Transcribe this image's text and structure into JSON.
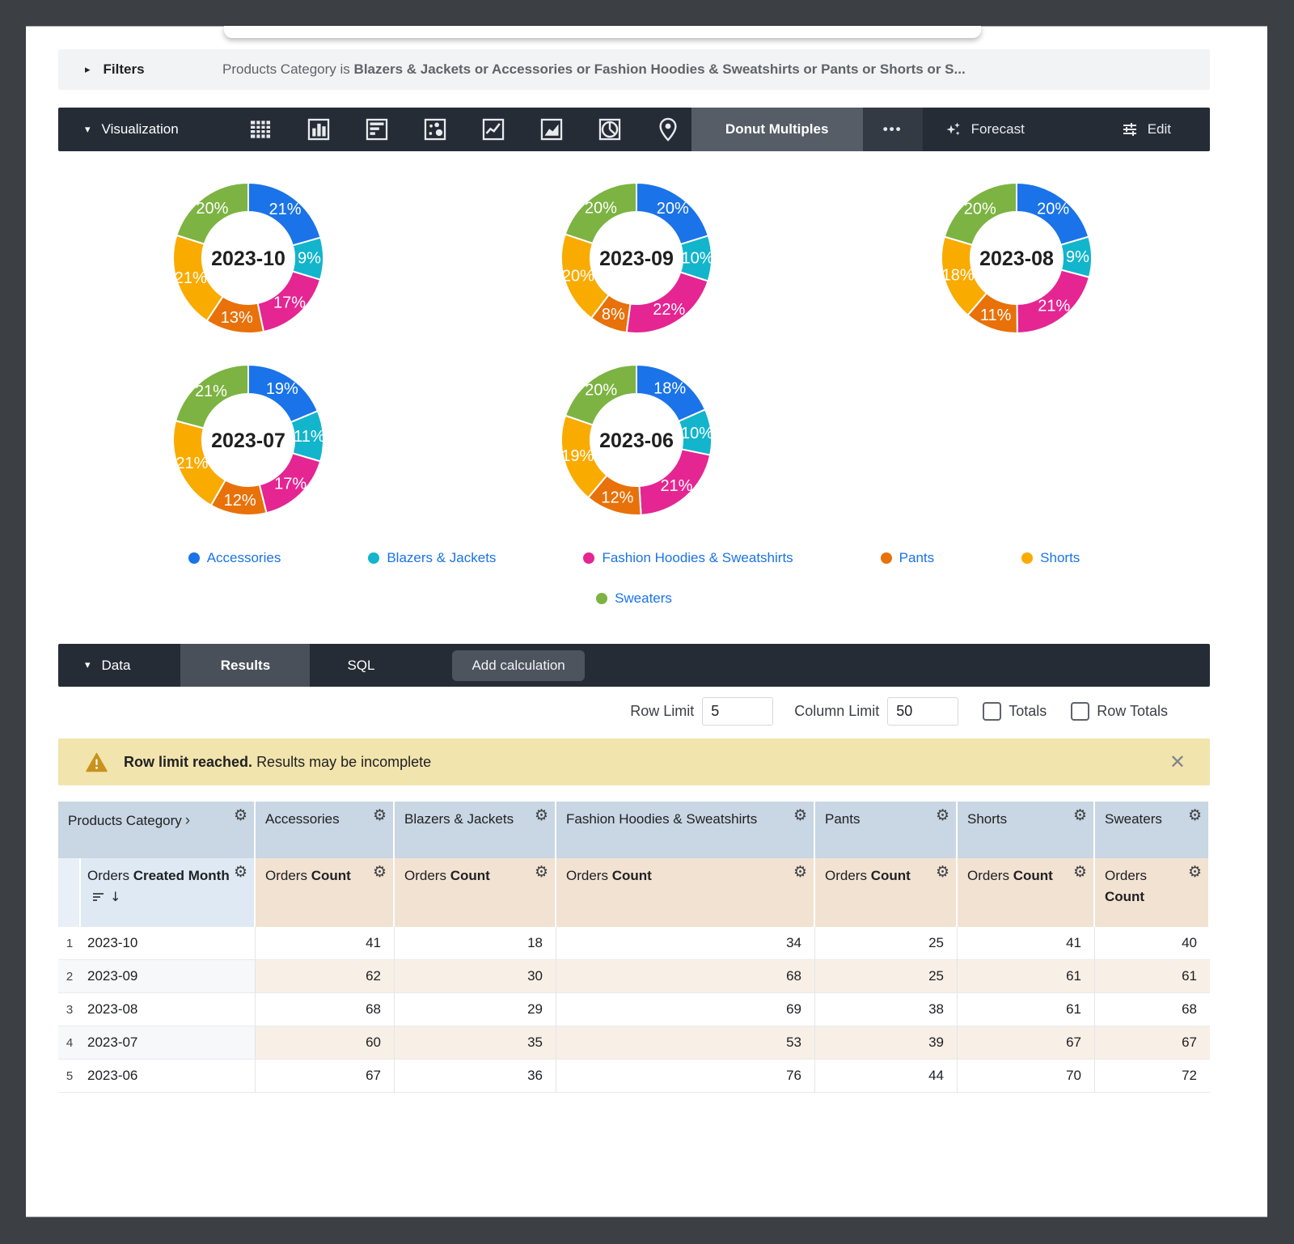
{
  "filters_bar": {
    "label": "Filters",
    "field": "Products Category",
    "operator": "is",
    "values_text": "Blazers & Jackets or Accessories or Fashion Hoodies & Sweatshirts or Pants or Shorts or S..."
  },
  "viz_bar": {
    "label": "Visualization",
    "chart_type_buttons": [
      "table-chart-icon",
      "column-chart-icon",
      "bar-chart-icon",
      "scatter-chart-icon",
      "line-chart-icon",
      "area-chart-icon",
      "pie-chart-icon",
      "map-chart-icon"
    ],
    "selected_type": "Donut Multiples",
    "more_label": "•••",
    "forecast_label": "Forecast",
    "edit_label": "Edit"
  },
  "chart_data": {
    "type": "pie",
    "subtype": "donut-multiples",
    "legend_position": "bottom",
    "categories": [
      "Accessories",
      "Blazers & Jackets",
      "Fashion Hoodies & Sweatshirts",
      "Pants",
      "Shorts",
      "Sweaters"
    ],
    "colors": [
      "#1A73E8",
      "#12B5CB",
      "#E52592",
      "#E8710A",
      "#F9AB00",
      "#7CB342"
    ],
    "donuts": [
      {
        "label": "2023-10",
        "values": [
          41,
          18,
          34,
          25,
          41,
          40
        ],
        "percent_labels": [
          "21%",
          "9%",
          "17%",
          "13%",
          "21%",
          "20%"
        ]
      },
      {
        "label": "2023-09",
        "values": [
          62,
          30,
          68,
          25,
          61,
          61
        ],
        "percent_labels": [
          "20%",
          "10%",
          "22%",
          "8%",
          "20%",
          "20%"
        ]
      },
      {
        "label": "2023-08",
        "values": [
          68,
          29,
          69,
          38,
          61,
          68
        ],
        "percent_labels": [
          "20%",
          "9%",
          "21%",
          "11%",
          "18%",
          "20%"
        ]
      },
      {
        "label": "2023-07",
        "values": [
          60,
          35,
          53,
          39,
          67,
          67
        ],
        "percent_labels": [
          "19%",
          "11%",
          "17%",
          "12%",
          "21%",
          "21%"
        ]
      },
      {
        "label": "2023-06",
        "values": [
          67,
          36,
          76,
          44,
          70,
          72
        ],
        "percent_labels": [
          "18%",
          "10%",
          "21%",
          "12%",
          "19%",
          "20%"
        ]
      }
    ]
  },
  "data_section": {
    "label": "Data",
    "tabs": [
      {
        "label": "Results",
        "active": true
      },
      {
        "label": "SQL",
        "active": false
      }
    ],
    "add_calculation_label": "Add calculation",
    "row_limit_label": "Row Limit",
    "row_limit_value": "5",
    "column_limit_label": "Column Limit",
    "column_limit_value": "50",
    "totals_label": "Totals",
    "row_totals_label": "Row Totals"
  },
  "warning_banner": {
    "title": "Row limit reached.",
    "message": "Results may be incomplete"
  },
  "table": {
    "dimension_header": "Products Category",
    "dimension_subheader_prefix": "Orders",
    "dimension_subheader_bold": "Created Month",
    "measure_subheader_prefix": "Orders",
    "measure_subheader_bold": "Count",
    "measure_columns": [
      "Accessories",
      "Blazers & Jackets",
      "Fashion Hoodies & Sweatshirts",
      "Pants",
      "Shorts",
      "Sweaters"
    ],
    "rows": [
      {
        "index": "1",
        "month": "2023-10",
        "values": [
          41,
          18,
          34,
          25,
          41,
          40
        ]
      },
      {
        "index": "2",
        "month": "2023-09",
        "values": [
          62,
          30,
          68,
          25,
          61,
          61
        ]
      },
      {
        "index": "3",
        "month": "2023-08",
        "values": [
          68,
          29,
          69,
          38,
          61,
          68
        ]
      },
      {
        "index": "4",
        "month": "2023-07",
        "values": [
          60,
          35,
          53,
          39,
          67,
          67
        ]
      },
      {
        "index": "5",
        "month": "2023-06",
        "values": [
          67,
          36,
          76,
          44,
          70,
          72
        ]
      }
    ]
  }
}
